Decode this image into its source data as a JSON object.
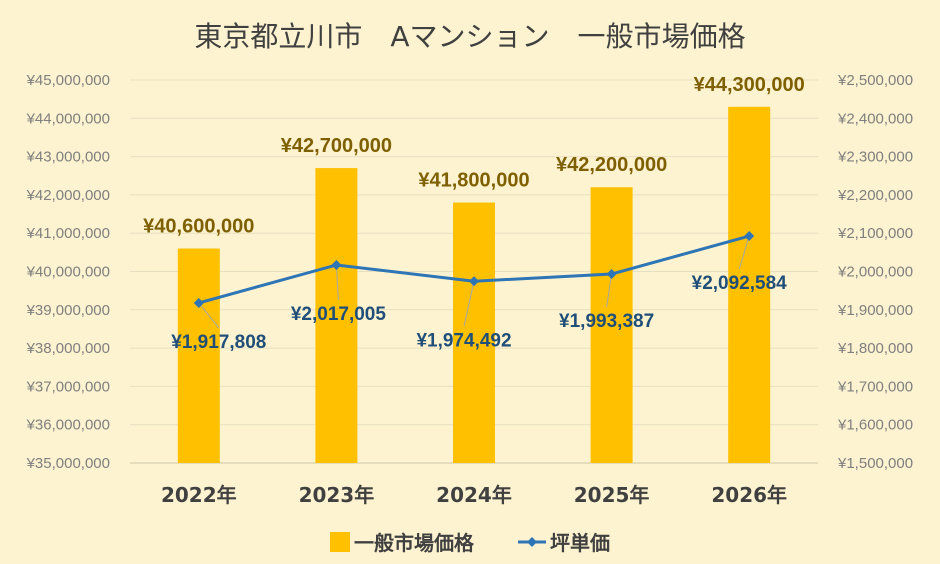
{
  "chart_data": {
    "type": "bar",
    "title": "東京都立川市　Aマンション　一般市場価格",
    "categories": [
      "2022年",
      "2023年",
      "2024年",
      "2025年",
      "2026年"
    ],
    "series": [
      {
        "name": "一般市場価格",
        "kind": "bar",
        "axis": "left",
        "color": "#ffc000",
        "values": [
          40600000,
          42700000,
          41800000,
          42200000,
          44300000
        ],
        "labels": [
          "¥40,600,000",
          "¥42,700,000",
          "¥41,800,000",
          "¥42,200,000",
          "¥44,300,000"
        ]
      },
      {
        "name": "坪単価",
        "kind": "line",
        "axis": "right",
        "color": "#2e75b6",
        "marker": "diamond",
        "values": [
          1917808,
          2017005,
          1974492,
          1993387,
          2092584
        ],
        "labels": [
          "¥1,917,808",
          "¥2,017,005",
          "¥1,974,492",
          "¥1,993,387",
          "¥2,092,584"
        ]
      }
    ],
    "y_left": {
      "min": 35000000,
      "max": 45000000,
      "ticks": [
        "¥35,000,000",
        "¥36,000,000",
        "¥37,000,000",
        "¥38,000,000",
        "¥39,000,000",
        "¥40,000,000",
        "¥41,000,000",
        "¥42,000,000",
        "¥43,000,000",
        "¥44,000,000",
        "¥45,000,000"
      ]
    },
    "y_right": {
      "min": 1500000,
      "max": 2500000,
      "ticks": [
        "¥1,500,000",
        "¥1,600,000",
        "¥1,700,000",
        "¥1,800,000",
        "¥1,900,000",
        "¥2,000,000",
        "¥2,100,000",
        "¥2,200,000",
        "¥2,300,000",
        "¥2,400,000",
        "¥2,500,000"
      ]
    },
    "grid": true,
    "legend": "bottom",
    "background": "#fdf3d0"
  }
}
